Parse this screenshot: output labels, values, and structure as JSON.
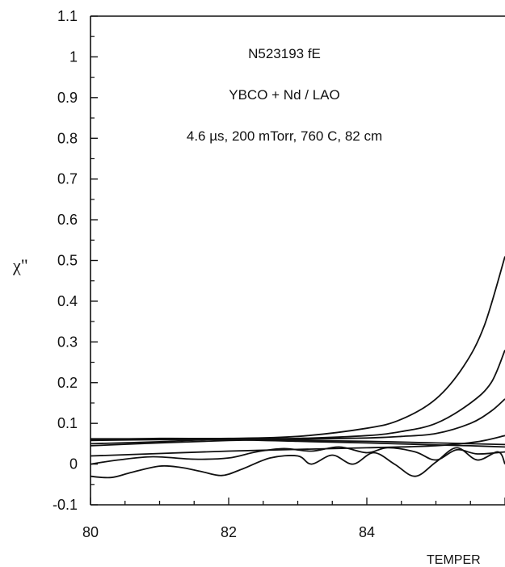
{
  "chart_data": {
    "type": "line",
    "title": "",
    "annotations": [
      "N523193 fE",
      "YBCO + Nd / LAO",
      "4.6 µs, 200 mTorr, 760 C, 82 cm"
    ],
    "ylabel": "χ\"",
    "xlabel": "TEMPER",
    "xlim": [
      80,
      86
    ],
    "ylim": [
      -0.1,
      1.1
    ],
    "x_ticks": [
      80,
      82,
      84
    ],
    "y_ticks": [
      -0.1,
      0,
      0.1,
      0.2,
      0.3,
      0.4,
      0.5,
      0.6,
      0.7,
      0.8,
      0.9,
      1,
      1.1
    ],
    "y_tick_labels": [
      "-0.1",
      "0",
      "0.1",
      "0.2",
      "0.3",
      "0.4",
      "0.5",
      "0.6",
      "0.7",
      "0.8",
      "0.9",
      "1",
      "1.1"
    ],
    "grid": false,
    "series": [
      {
        "x": [
          80,
          81,
          82,
          83,
          84,
          84.5,
          85,
          85.4,
          85.7,
          86
        ],
        "y": [
          0.06,
          0.063,
          0.063,
          0.068,
          0.088,
          0.11,
          0.16,
          0.24,
          0.34,
          0.51
        ]
      },
      {
        "x": [
          80,
          81,
          82,
          83,
          84,
          84.5,
          85,
          85.5,
          85.8,
          86
        ],
        "y": [
          0.05,
          0.055,
          0.062,
          0.063,
          0.07,
          0.08,
          0.1,
          0.15,
          0.2,
          0.28
        ]
      },
      {
        "x": [
          80,
          81,
          82,
          83,
          84,
          84.5,
          85,
          85.5,
          85.8,
          86
        ],
        "y": [
          0.045,
          0.052,
          0.058,
          0.061,
          0.064,
          0.068,
          0.075,
          0.1,
          0.13,
          0.16
        ]
      },
      {
        "x": [
          80,
          81,
          82,
          83,
          84,
          85,
          85.5,
          86
        ],
        "y": [
          0.062,
          0.062,
          0.06,
          0.058,
          0.056,
          0.052,
          0.05,
          0.048
        ]
      },
      {
        "x": [
          80,
          81,
          82,
          83,
          84,
          85,
          85.5,
          86
        ],
        "y": [
          0.058,
          0.06,
          0.06,
          0.056,
          0.052,
          0.047,
          0.045,
          0.042
        ]
      },
      {
        "x": [
          80,
          81,
          82,
          83,
          84,
          85,
          85.6,
          86
        ],
        "y": [
          0.02,
          0.026,
          0.032,
          0.036,
          0.04,
          0.045,
          0.055,
          0.07
        ]
      },
      {
        "x": [
          80,
          80.4,
          80.9,
          81.5,
          82,
          82.4,
          82.8,
          83.2,
          83.6,
          84,
          84.3,
          84.7,
          85,
          85.3,
          85.6,
          86
        ],
        "y": [
          0.0,
          0.01,
          0.018,
          0.012,
          0.015,
          0.03,
          0.038,
          0.032,
          0.042,
          0.028,
          0.04,
          0.03,
          0.01,
          0.035,
          0.025,
          0.03
        ]
      },
      {
        "x": [
          80,
          80.3,
          80.6,
          81,
          81.3,
          81.6,
          81.9,
          82.2,
          82.6,
          83,
          83.2,
          83.5,
          83.8,
          84.1,
          84.4,
          84.7,
          85,
          85.3,
          85.6,
          85.9,
          86
        ],
        "y": [
          -0.03,
          -0.033,
          -0.02,
          -0.005,
          -0.008,
          -0.018,
          -0.028,
          -0.012,
          0.015,
          0.02,
          0.0,
          0.022,
          0.0,
          0.028,
          0.0,
          -0.03,
          0.005,
          0.04,
          0.01,
          0.03,
          0.0
        ]
      }
    ]
  }
}
